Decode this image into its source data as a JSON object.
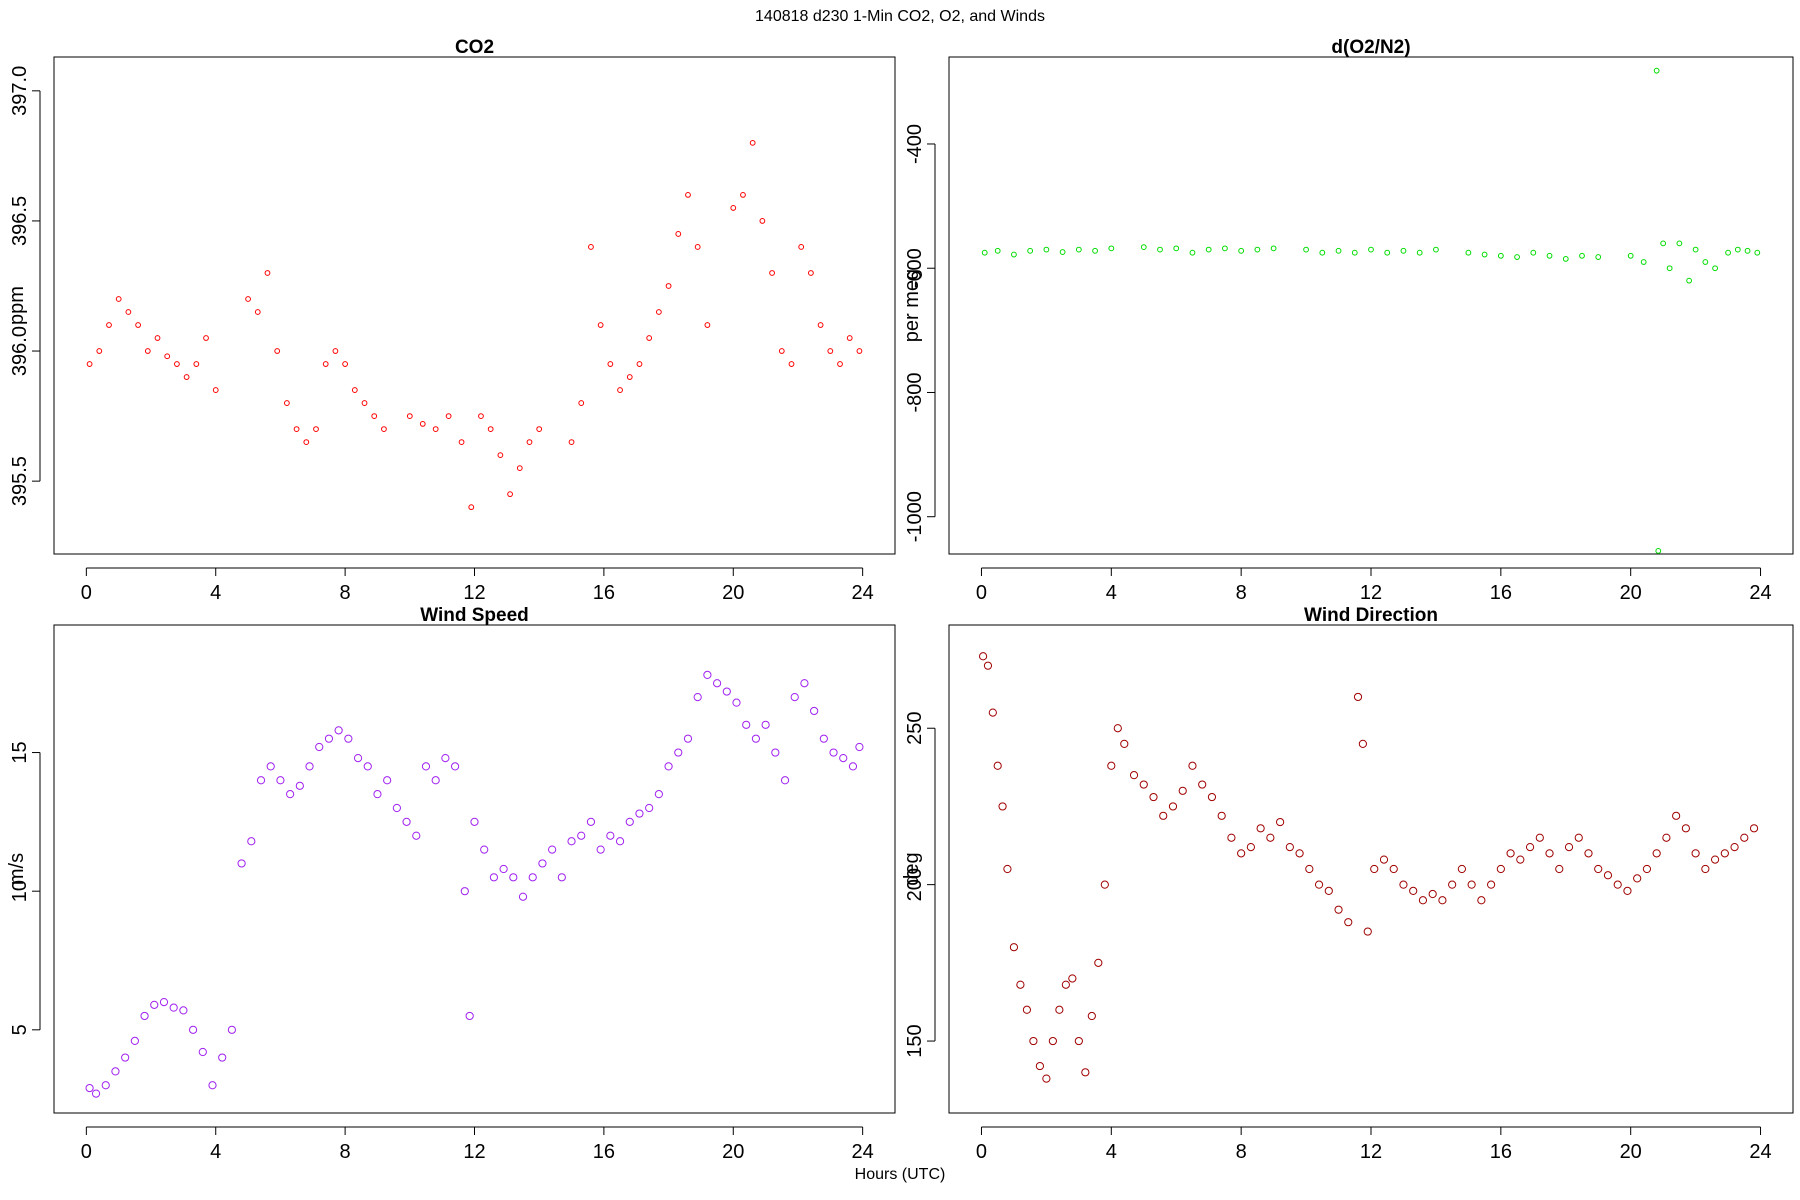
{
  "figure": {
    "title": "140818   d230   1-Min CO2, O2, and Winds",
    "xlabel": "Hours (UTC)"
  },
  "chart_data": [
    {
      "type": "scatter",
      "title": "CO2",
      "ylabel": "ppm",
      "color": "#ff0000",
      "marker": "open-circle",
      "xlim": [
        -1,
        25
      ],
      "ylim": [
        395.22,
        397.13
      ],
      "xticks": [
        0,
        4,
        8,
        12,
        16,
        20,
        24
      ],
      "yticks": [
        395.5,
        396.0,
        396.5,
        397.0
      ],
      "ytick_labels": [
        "395.5",
        "396.0",
        "396.5",
        "397.0"
      ],
      "x": [
        0.1,
        0.4,
        0.7,
        1.0,
        1.3,
        1.6,
        1.9,
        2.2,
        2.5,
        2.8,
        3.1,
        3.4,
        3.7,
        4.0,
        5.0,
        5.3,
        5.6,
        5.9,
        6.2,
        6.5,
        6.8,
        7.1,
        7.4,
        7.7,
        8.0,
        8.3,
        8.6,
        8.9,
        9.2,
        10.0,
        10.4,
        10.8,
        11.2,
        11.6,
        11.9,
        12.2,
        12.5,
        12.8,
        13.1,
        13.4,
        13.7,
        14.0,
        15.0,
        15.3,
        15.6,
        15.9,
        16.2,
        16.5,
        16.8,
        17.1,
        17.4,
        17.7,
        18.0,
        18.3,
        18.6,
        18.9,
        19.2,
        20.0,
        20.3,
        20.6,
        20.9,
        21.2,
        21.5,
        21.8,
        22.1,
        22.4,
        22.7,
        23.0,
        23.3,
        23.6,
        23.9
      ],
      "y": [
        395.95,
        396.0,
        396.1,
        396.2,
        396.15,
        396.1,
        396.0,
        396.05,
        395.98,
        395.95,
        395.9,
        395.95,
        396.05,
        395.85,
        396.2,
        396.15,
        396.3,
        396.0,
        395.8,
        395.7,
        395.65,
        395.7,
        395.95,
        396.0,
        395.95,
        395.85,
        395.8,
        395.75,
        395.7,
        395.75,
        395.72,
        395.7,
        395.75,
        395.65,
        395.4,
        395.75,
        395.7,
        395.6,
        395.45,
        395.55,
        395.65,
        395.7,
        395.65,
        395.8,
        396.4,
        396.1,
        395.95,
        395.85,
        395.9,
        395.95,
        396.05,
        396.15,
        396.25,
        396.45,
        396.6,
        396.4,
        396.1,
        396.55,
        396.6,
        396.8,
        396.5,
        396.3,
        396.0,
        395.95,
        396.4,
        396.3,
        396.1,
        396.0,
        395.95,
        396.05,
        396.0
      ]
    },
    {
      "type": "scatter",
      "title": "d(O2/N2)",
      "ylabel": "per meg",
      "color": "#00dd00",
      "marker": "open-circle",
      "xlim": [
        -1,
        25
      ],
      "ylim": [
        -1060,
        -260
      ],
      "xticks": [
        0,
        4,
        8,
        12,
        16,
        20,
        24
      ],
      "yticks": [
        -1000,
        -800,
        -600,
        -400
      ],
      "ytick_labels": [
        "-1000",
        "-800",
        "-600",
        "-400"
      ],
      "x": [
        0.1,
        0.5,
        1.0,
        1.5,
        2.0,
        2.5,
        3.0,
        3.5,
        4.0,
        5.0,
        5.5,
        6.0,
        6.5,
        7.0,
        7.5,
        8.0,
        8.5,
        9.0,
        10.0,
        10.5,
        11.0,
        11.5,
        12.0,
        12.5,
        13.0,
        13.5,
        14.0,
        15.0,
        15.5,
        16.0,
        16.5,
        17.0,
        17.5,
        18.0,
        18.5,
        19.0,
        20.0,
        20.4,
        20.8,
        20.85,
        21.0,
        21.2,
        21.5,
        21.8,
        22.0,
        22.3,
        22.6,
        23.0,
        23.3,
        23.6,
        23.9
      ],
      "y": [
        -575,
        -572,
        -578,
        -572,
        -570,
        -574,
        -570,
        -572,
        -568,
        -566,
        -570,
        -568,
        -575,
        -570,
        -568,
        -572,
        -570,
        -568,
        -570,
        -575,
        -572,
        -575,
        -570,
        -575,
        -572,
        -575,
        -570,
        -575,
        -578,
        -580,
        -582,
        -575,
        -580,
        -585,
        -580,
        -582,
        -580,
        -590,
        -282,
        -1055,
        -560,
        -600,
        -560,
        -620,
        -570,
        -590,
        -600,
        -575,
        -570,
        -572,
        -575
      ]
    },
    {
      "type": "scatter",
      "title": "Wind Speed",
      "ylabel": "m/s",
      "color": "#a020f0",
      "marker": "open-circle",
      "xlim": [
        -1,
        25
      ],
      "ylim": [
        2.0,
        19.6
      ],
      "xticks": [
        0,
        4,
        8,
        12,
        16,
        20,
        24
      ],
      "yticks": [
        5,
        10,
        15
      ],
      "ytick_labels": [
        "5",
        "10",
        "15"
      ],
      "x": [
        0.1,
        0.3,
        0.6,
        0.9,
        1.2,
        1.5,
        1.8,
        2.1,
        2.4,
        2.7,
        3.0,
        3.3,
        3.6,
        3.9,
        4.2,
        4.5,
        4.8,
        5.1,
        5.4,
        5.7,
        6.0,
        6.3,
        6.6,
        6.9,
        7.2,
        7.5,
        7.8,
        8.1,
        8.4,
        8.7,
        9.0,
        9.3,
        9.6,
        9.9,
        10.2,
        10.5,
        10.8,
        11.1,
        11.4,
        11.7,
        11.85,
        12.0,
        12.3,
        12.6,
        12.9,
        13.2,
        13.5,
        13.8,
        14.1,
        14.4,
        14.7,
        15.0,
        15.3,
        15.6,
        15.9,
        16.2,
        16.5,
        16.8,
        17.1,
        17.4,
        17.7,
        18.0,
        18.3,
        18.6,
        18.9,
        19.2,
        19.5,
        19.8,
        20.1,
        20.4,
        20.7,
        21.0,
        21.3,
        21.6,
        21.9,
        22.2,
        22.5,
        22.8,
        23.1,
        23.4,
        23.7,
        23.9
      ],
      "y": [
        2.9,
        2.7,
        3.0,
        3.5,
        4.0,
        4.6,
        5.5,
        5.9,
        6.0,
        5.8,
        5.7,
        5.0,
        4.2,
        3.0,
        4.0,
        5.0,
        11.0,
        11.8,
        14.0,
        14.5,
        14.0,
        13.5,
        13.8,
        14.5,
        15.2,
        15.5,
        15.8,
        15.5,
        14.8,
        14.5,
        13.5,
        14.0,
        13.0,
        12.5,
        12.0,
        14.5,
        14.0,
        14.8,
        14.5,
        10.0,
        5.5,
        12.5,
        11.5,
        10.5,
        10.8,
        10.5,
        9.8,
        10.5,
        11.0,
        11.5,
        10.5,
        11.8,
        12.0,
        12.5,
        11.5,
        12.0,
        11.8,
        12.5,
        12.8,
        13.0,
        13.5,
        14.5,
        15.0,
        15.5,
        17.0,
        17.8,
        17.5,
        17.2,
        16.8,
        16.0,
        15.5,
        16.0,
        15.0,
        14.0,
        17.0,
        17.5,
        16.5,
        15.5,
        15.0,
        14.8,
        14.5,
        15.2
      ]
    },
    {
      "type": "scatter",
      "title": "Wind Direction",
      "ylabel": "deg",
      "color": "#a00000",
      "marker": "open-circle",
      "xlim": [
        -1,
        25
      ],
      "ylim": [
        127,
        283
      ],
      "xticks": [
        0,
        4,
        8,
        12,
        16,
        20,
        24
      ],
      "yticks": [
        150,
        200,
        250
      ],
      "ytick_labels": [
        "150",
        "200",
        "250"
      ],
      "x": [
        0.05,
        0.2,
        0.35,
        0.5,
        0.65,
        0.8,
        1.0,
        1.2,
        1.4,
        1.6,
        1.8,
        2.0,
        2.2,
        2.4,
        2.6,
        2.8,
        3.0,
        3.2,
        3.4,
        3.6,
        3.8,
        4.0,
        4.2,
        4.4,
        4.7,
        5.0,
        5.3,
        5.6,
        5.9,
        6.2,
        6.5,
        6.8,
        7.1,
        7.4,
        7.7,
        8.0,
        8.3,
        8.6,
        8.9,
        9.2,
        9.5,
        9.8,
        10.1,
        10.4,
        10.7,
        11.0,
        11.3,
        11.6,
        11.75,
        11.9,
        12.1,
        12.4,
        12.7,
        13.0,
        13.3,
        13.6,
        13.9,
        14.2,
        14.5,
        14.8,
        15.1,
        15.4,
        15.7,
        16.0,
        16.3,
        16.6,
        16.9,
        17.2,
        17.5,
        17.8,
        18.1,
        18.4,
        18.7,
        19.0,
        19.3,
        19.6,
        19.9,
        20.2,
        20.5,
        20.8,
        21.1,
        21.4,
        21.7,
        22.0,
        22.3,
        22.6,
        22.9,
        23.2,
        23.5,
        23.8
      ],
      "y": [
        273,
        270,
        255,
        238,
        225,
        205,
        180,
        168,
        160,
        150,
        142,
        138,
        150,
        160,
        168,
        170,
        150,
        140,
        158,
        175,
        200,
        238,
        250,
        245,
        235,
        232,
        228,
        222,
        225,
        230,
        238,
        232,
        228,
        222,
        215,
        210,
        212,
        218,
        215,
        220,
        212,
        210,
        205,
        200,
        198,
        192,
        188,
        260,
        245,
        185,
        205,
        208,
        205,
        200,
        198,
        195,
        197,
        195,
        200,
        205,
        200,
        195,
        200,
        205,
        210,
        208,
        212,
        215,
        210,
        205,
        212,
        215,
        210,
        205,
        203,
        200,
        198,
        202,
        205,
        210,
        215,
        222,
        218,
        210,
        205,
        208,
        210,
        212,
        215,
        218
      ]
    }
  ]
}
